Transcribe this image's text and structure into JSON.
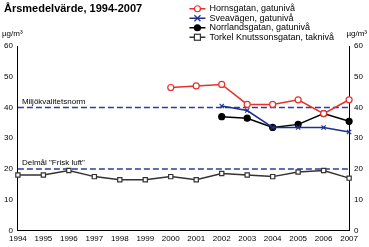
{
  "chart_data": {
    "type": "line",
    "title": "Årsmedelvärde, 1994-2007",
    "y_label": "µg/m³",
    "y2_label": "µg/m³",
    "categories": [
      "1994",
      "1995",
      "1996",
      "1997",
      "1998",
      "1999",
      "2000",
      "2001",
      "2002",
      "2003",
      "2004",
      "2005",
      "2006",
      "2007"
    ],
    "series": [
      {
        "name": "Hornsgatan, gatunivå",
        "color": "#e8302a",
        "marker": "circle_open",
        "values": [
          null,
          null,
          null,
          null,
          null,
          null,
          46.5,
          47,
          47.5,
          41,
          41,
          42.5,
          38,
          42.5
        ]
      },
      {
        "name": "Sveavägen, gatunivå",
        "color": "#1f2f8f",
        "marker": "cross",
        "values": [
          null,
          null,
          null,
          null,
          null,
          null,
          null,
          null,
          40.5,
          39,
          33.5,
          33.5,
          33.5,
          32
        ]
      },
      {
        "name": "Norrlandsgatan, gatunivå",
        "color": "#000000",
        "marker": "circle",
        "values": [
          null,
          null,
          null,
          null,
          null,
          null,
          null,
          null,
          37,
          36.5,
          33.5,
          34.5,
          38,
          35.5
        ]
      },
      {
        "name": "Torkel Knutssonsgatan, taknivå",
        "color": "#333333",
        "marker": "square_open",
        "values": [
          18,
          18,
          19.5,
          17.5,
          16.5,
          16.5,
          17.5,
          16.5,
          18.5,
          18,
          17.5,
          19,
          19.5,
          17
        ]
      }
    ],
    "ylim": [
      0,
      60
    ],
    "yticks": [
      0,
      10,
      20,
      30,
      40,
      50,
      60
    ],
    "y2lim": [
      0,
      60
    ],
    "y2ticks": [
      0,
      10,
      20,
      30,
      40,
      50,
      60
    ],
    "grid": false,
    "legend": "upper right",
    "annotations": [
      {
        "text": "Miljökvalitetsnorm",
        "y": 40,
        "color": "#2a3f9a",
        "line_style": "dashed"
      },
      {
        "text": "Delmål \"Frisk luft\"",
        "y": 20,
        "color": "#2a3f9a",
        "line_style": "dashed"
      }
    ]
  }
}
